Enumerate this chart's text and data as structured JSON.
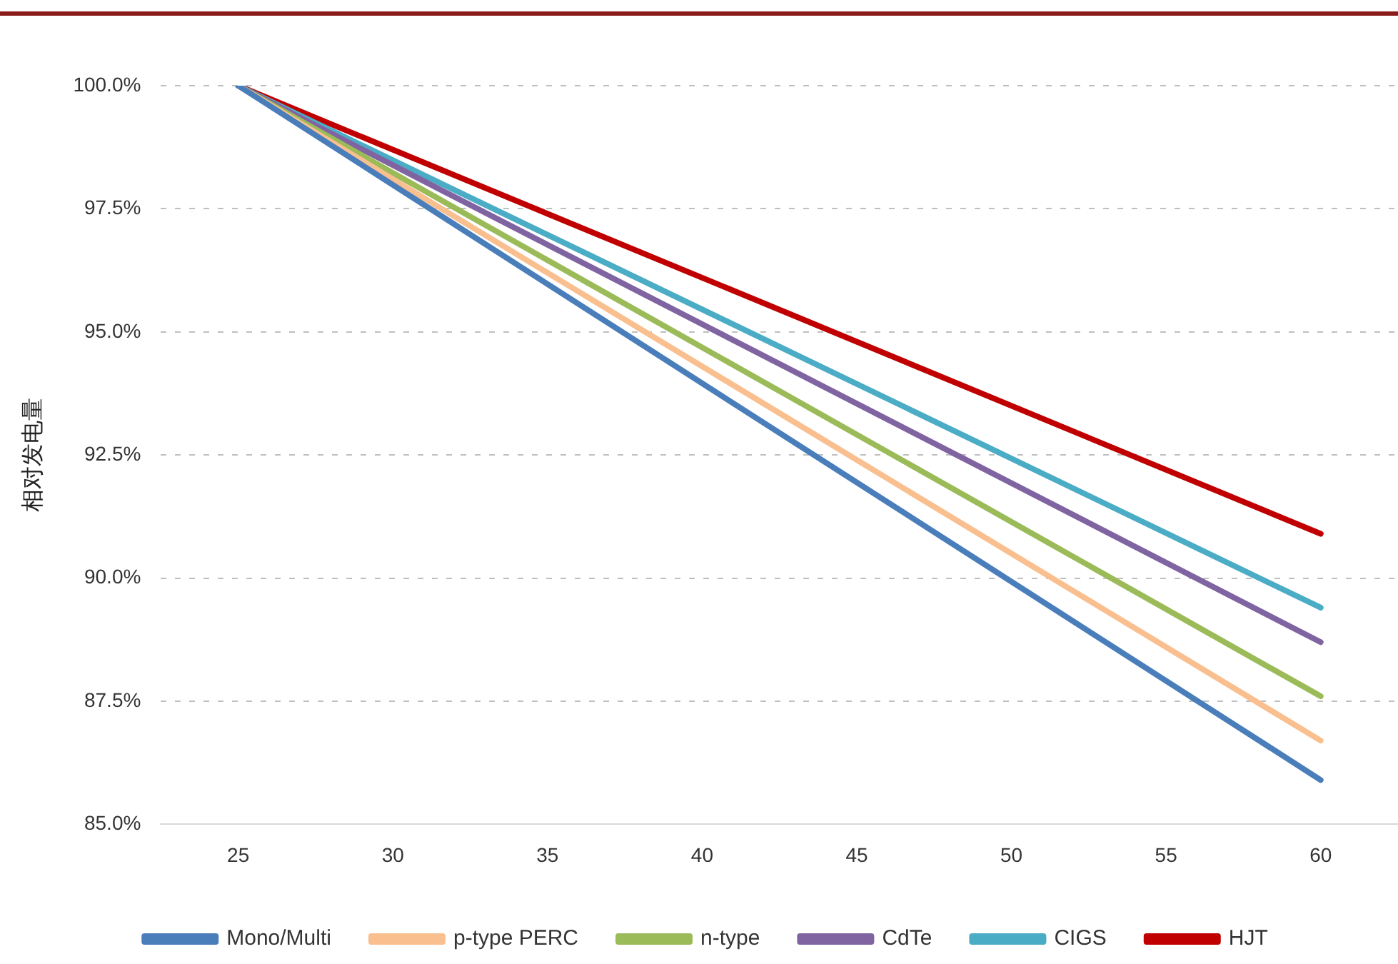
{
  "chart_data": {
    "type": "line",
    "ylabel": "相对发电量",
    "x": [
      25,
      60
    ],
    "xlim": [
      22.5,
      62.5
    ],
    "xticks": [
      25,
      30,
      35,
      40,
      45,
      50,
      55,
      60
    ],
    "ylim": [
      85,
      100
    ],
    "yticks": [
      {
        "value": 85,
        "label": "85.0%"
      },
      {
        "value": 87.5,
        "label": "87.5%"
      },
      {
        "value": 90,
        "label": "90.0%"
      },
      {
        "value": 92.5,
        "label": "92.5%"
      },
      {
        "value": 95,
        "label": "95.0%"
      },
      {
        "value": 97.5,
        "label": "97.5%"
      },
      {
        "value": 100,
        "label": "100.0%"
      }
    ],
    "grid": "y",
    "legend": "bottom",
    "marker": "none",
    "line_style": "solid",
    "series": [
      {
        "name": "Mono/Multi",
        "color": "#4a7ebb",
        "values": [
          100,
          85.9
        ]
      },
      {
        "name": "p-type PERC",
        "color": "#f9bf8f",
        "values": [
          100,
          86.7
        ]
      },
      {
        "name": "n-type",
        "color": "#9bbb59",
        "values": [
          100,
          87.6
        ]
      },
      {
        "name": "CdTe",
        "color": "#8064a2",
        "values": [
          100,
          88.7
        ]
      },
      {
        "name": "CIGS",
        "color": "#4bacc6",
        "values": [
          100,
          89.4
        ]
      },
      {
        "name": "HJT",
        "color": "#c00000",
        "values": [
          100,
          90.9
        ]
      }
    ]
  }
}
